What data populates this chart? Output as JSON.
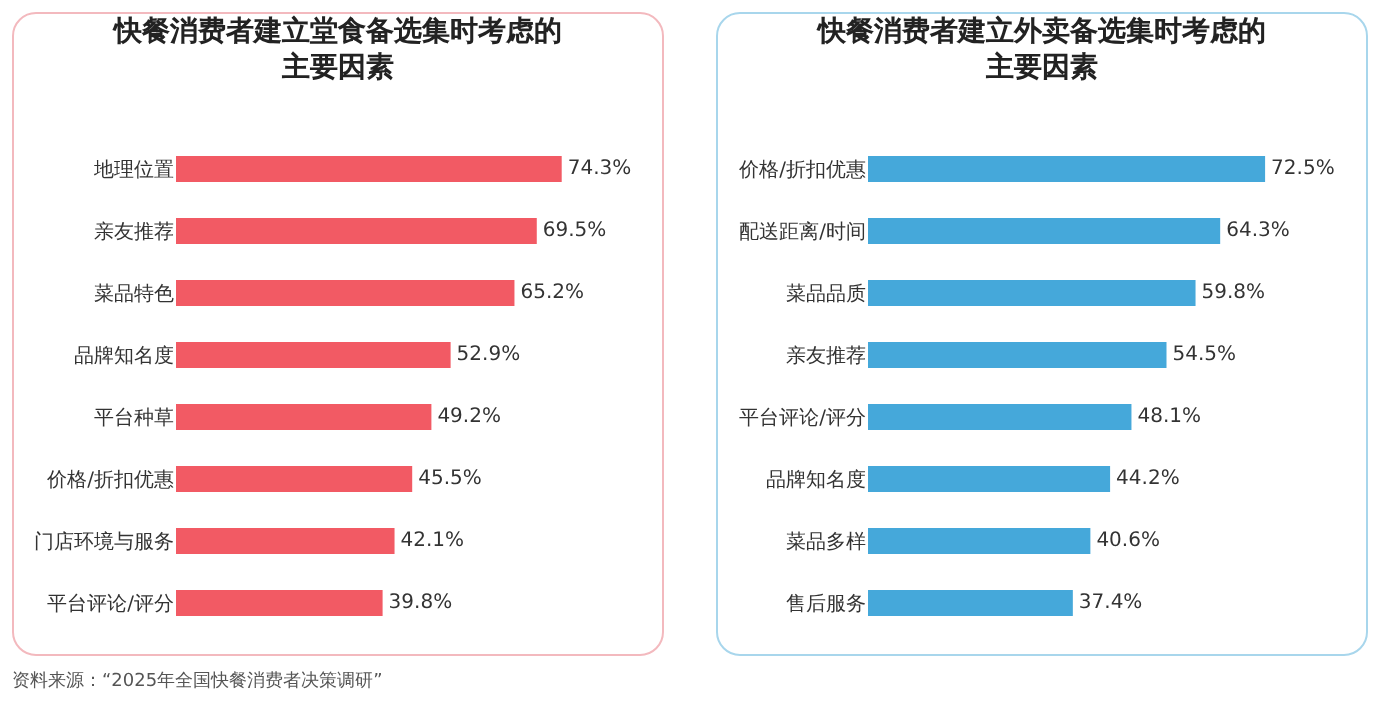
{
  "chart_data": [
    {
      "type": "bar",
      "orientation": "horizontal",
      "title": "快餐消费者建立堂食备选集时考虑的主要因素",
      "categories": [
        "地理位置",
        "亲友推荐",
        "菜品特色",
        "品牌知名度",
        "平台种草",
        "价格/折扣优惠",
        "门店环境与服务",
        "平台评论/评分"
      ],
      "values": [
        74.3,
        69.5,
        65.2,
        52.9,
        49.2,
        45.5,
        42.1,
        39.8
      ],
      "value_labels": [
        "74.3%",
        "69.5%",
        "65.2%",
        "52.9%",
        "49.2%",
        "45.5%",
        "42.1%",
        "39.8%"
      ],
      "color": "#f25a64",
      "annotations": [
        "资料来源：“2025年全国快餐消费者决策调研”"
      ]
    },
    {
      "type": "bar",
      "orientation": "horizontal",
      "title": "快餐消费者建立外卖备选集时考虑的主要因素",
      "categories": [
        "价格/折扣优惠",
        "配送距离/时间",
        "菜品品质",
        "亲友推荐",
        "平台评论/评分",
        "品牌知名度",
        "菜品多样",
        "售后服务"
      ],
      "values": [
        72.5,
        64.3,
        59.8,
        54.5,
        48.1,
        44.2,
        40.6,
        37.4
      ],
      "value_labels": [
        "72.5%",
        "64.3%",
        "59.8%",
        "54.5%",
        "48.1%",
        "44.2%",
        "40.6%",
        "37.4%"
      ],
      "color": "#45a8da"
    }
  ]
}
